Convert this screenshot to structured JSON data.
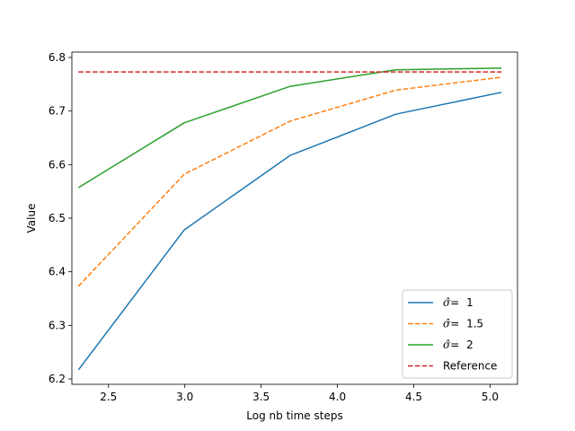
{
  "chart_data": {
    "type": "line",
    "title": "",
    "xlabel": "Log nb time  steps",
    "ylabel": "Value",
    "xlim": [
      2.26,
      5.18
    ],
    "ylim": [
      6.19,
      6.81
    ],
    "xticks": [
      2.5,
      3.0,
      3.5,
      4.0,
      4.5,
      5.0
    ],
    "xtick_labels": [
      "2.5",
      "3.0",
      "3.5",
      "4.0",
      "4.5",
      "5.0"
    ],
    "yticks": [
      6.2,
      6.3,
      6.4,
      6.5,
      6.6,
      6.7,
      6.8
    ],
    "ytick_labels": [
      "6.2",
      "6.3",
      "6.4",
      "6.5",
      "6.6",
      "6.7",
      "6.8"
    ],
    "grid": false,
    "legend_position": "lower-right",
    "x": [
      2.303,
      2.996,
      3.689,
      4.382,
      5.075
    ],
    "series": [
      {
        "label_symbol": "σ̂",
        "label_value": "1",
        "color": "#1f77b4",
        "dash": "solid",
        "values": [
          6.217,
          6.478,
          6.617,
          6.694,
          6.735
        ]
      },
      {
        "label_symbol": "σ̂",
        "label_value": "1.5",
        "color": "#ff7f0e",
        "dash": "dashed",
        "values": [
          6.373,
          6.582,
          6.681,
          6.739,
          6.763
        ]
      },
      {
        "label_symbol": "σ̂",
        "label_value": "2",
        "color": "#2ca02c",
        "dash": "solid",
        "values": [
          6.557,
          6.678,
          6.746,
          6.777,
          6.78
        ]
      },
      {
        "name": "Reference",
        "color": "#d62728",
        "dash": "dashed",
        "values": [
          6.773,
          6.773,
          6.773,
          6.773,
          6.773
        ]
      }
    ]
  }
}
